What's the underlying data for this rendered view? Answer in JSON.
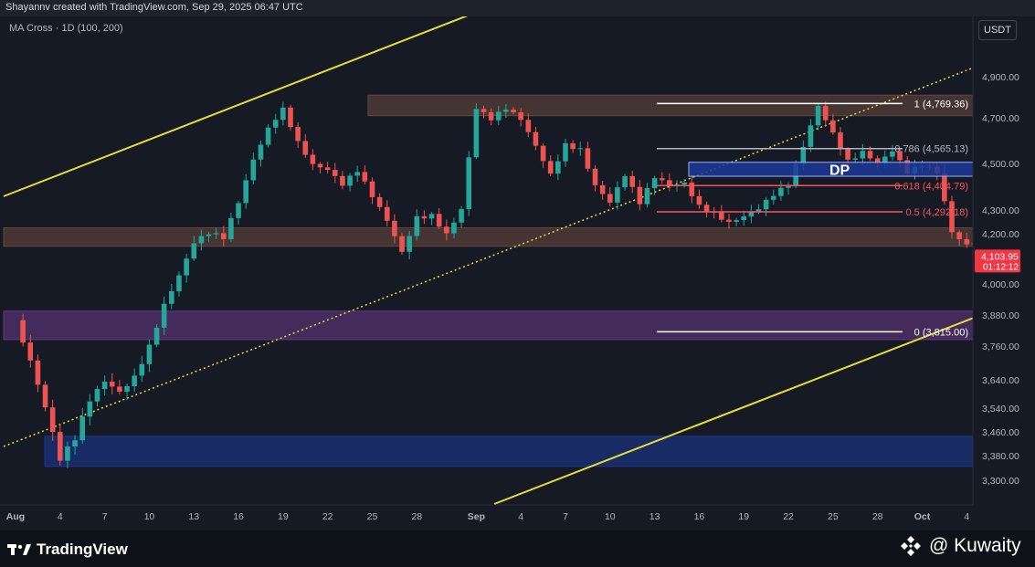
{
  "header": {
    "credit": "Shayannv created with TradingView.com, Sep 29, 2025 06:47 UTC",
    "indicator": "MA Cross · 1D (100, 200)",
    "currency": "USDT"
  },
  "footer": {
    "brand": "TradingView",
    "watermark": "@ Kuwaity"
  },
  "colors": {
    "background": "#161a25",
    "up": "#26a69a",
    "down": "#ef5350",
    "channel": "#e6dc3c",
    "supply_zone": "#6b4a3e",
    "purple_zone": "#6a3d8a",
    "blue_zone": "#1c3a9a",
    "price_tag": "#f23645"
  },
  "chart_data": {
    "type": "candlestick",
    "title": "",
    "y_ticks": [
      "4,900.00",
      "4,700.00",
      "4,500.00",
      "4,300.00",
      "4,200.00",
      "4,000.00",
      "3,880.00",
      "3,760.00",
      "3,640.00",
      "3,540.00",
      "3,460.00",
      "3,380.00",
      "3,300.00"
    ],
    "y_tick_values": [
      4900,
      4700,
      4500,
      4300,
      4200,
      4000,
      3880,
      3760,
      3640,
      3540,
      3460,
      3380,
      3300
    ],
    "x_ticks": [
      {
        "label": "Aug",
        "day": 0
      },
      {
        "label": "4",
        "day": 3
      },
      {
        "label": "7",
        "day": 6
      },
      {
        "label": "10",
        "day": 9
      },
      {
        "label": "13",
        "day": 12
      },
      {
        "label": "16",
        "day": 15
      },
      {
        "label": "19",
        "day": 18
      },
      {
        "label": "22",
        "day": 21
      },
      {
        "label": "25",
        "day": 24
      },
      {
        "label": "28",
        "day": 27
      },
      {
        "label": "Sep",
        "day": 31
      },
      {
        "label": "4",
        "day": 34
      },
      {
        "label": "7",
        "day": 37
      },
      {
        "label": "10",
        "day": 40
      },
      {
        "label": "13",
        "day": 43
      },
      {
        "label": "16",
        "day": 46
      },
      {
        "label": "19",
        "day": 49
      },
      {
        "label": "22",
        "day": 52
      },
      {
        "label": "25",
        "day": 55
      },
      {
        "label": "28",
        "day": 58
      },
      {
        "label": "Oct",
        "day": 61
      },
      {
        "label": "4",
        "day": 64
      }
    ],
    "anchors": [
      [
        0,
        3860
      ],
      [
        1,
        3720
      ],
      [
        2,
        3560
      ],
      [
        3,
        3380
      ],
      [
        4,
        3440
      ],
      [
        5,
        3560
      ],
      [
        6,
        3620
      ],
      [
        7,
        3580
      ],
      [
        8,
        3640
      ],
      [
        9,
        3760
      ],
      [
        10,
        3930
      ],
      [
        11,
        4050
      ],
      [
        12,
        4180
      ],
      [
        13,
        4210
      ],
      [
        14,
        4180
      ],
      [
        15,
        4320
      ],
      [
        16,
        4500
      ],
      [
        17,
        4640
      ],
      [
        18,
        4740
      ],
      [
        19,
        4600
      ],
      [
        20,
        4510
      ],
      [
        21,
        4490
      ],
      [
        22,
        4420
      ],
      [
        23,
        4470
      ],
      [
        24,
        4350
      ],
      [
        25,
        4240
      ],
      [
        26,
        4110
      ],
      [
        27,
        4260
      ],
      [
        28,
        4280
      ],
      [
        29,
        4210
      ],
      [
        30,
        4320
      ],
      [
        31,
        4760
      ],
      [
        32,
        4700
      ],
      [
        33,
        4740
      ],
      [
        34,
        4680
      ],
      [
        35,
        4560
      ],
      [
        36,
        4440
      ],
      [
        37,
        4580
      ],
      [
        38,
        4570
      ],
      [
        39,
        4420
      ],
      [
        40,
        4350
      ],
      [
        41,
        4460
      ],
      [
        42,
        4330
      ],
      [
        43,
        4430
      ],
      [
        44,
        4390
      ],
      [
        45,
        4400
      ],
      [
        46,
        4310
      ],
      [
        47,
        4290
      ],
      [
        48,
        4260
      ],
      [
        49,
        4290
      ],
      [
        50,
        4320
      ],
      [
        51,
        4370
      ],
      [
        52,
        4400
      ],
      [
        53,
        4560
      ],
      [
        54,
        4740
      ],
      [
        55,
        4620
      ],
      [
        56,
        4510
      ],
      [
        57,
        4560
      ],
      [
        58,
        4520
      ],
      [
        59,
        4570
      ],
      [
        60,
        4470
      ],
      [
        61,
        4490
      ],
      [
        62,
        4450
      ],
      [
        63,
        4190
      ],
      [
        64,
        4140
      ],
      [
        65,
        4180
      ],
      [
        66,
        4120
      ],
      [
        67,
        3920
      ],
      [
        68,
        3960
      ],
      [
        69,
        4030
      ],
      [
        70,
        4010
      ],
      [
        71,
        4020
      ],
      [
        72,
        4104
      ]
    ],
    "zones": [
      {
        "id": "supply-top",
        "from": 4710,
        "to": 4810,
        "color": "#6b4a3e"
      },
      {
        "id": "resistance",
        "from": 4150,
        "to": 4225,
        "color": "#6b4a3e"
      },
      {
        "id": "purple",
        "from": 3785,
        "to": 3895,
        "color": "#6a3d8a"
      },
      {
        "id": "blue-low",
        "from": 3345,
        "to": 3445,
        "color": "#1c3a9a"
      }
    ],
    "dp_zone": {
      "label": "DP",
      "from": 4445,
      "to": 4505
    },
    "fib_levels": [
      {
        "label": "1 (4,769.36)",
        "value": 4769.36,
        "color": "#ffffff"
      },
      {
        "label": "0.786 (4,565.13)",
        "value": 4565.13,
        "color": "#b2b5be"
      },
      {
        "label": "0.618 (4,404.79)",
        "value": 4404.79,
        "color": "#f7525f"
      },
      {
        "label": "0.5 (4,292.18)",
        "value": 4292.18,
        "color": "#f7525f"
      },
      {
        "label": "0 (3,815.00)",
        "value": 3815.0,
        "color": "#ffffff"
      }
    ],
    "current_price": {
      "value": 4103.95,
      "label": "4,103.95",
      "countdown": "01:12:12"
    }
  }
}
